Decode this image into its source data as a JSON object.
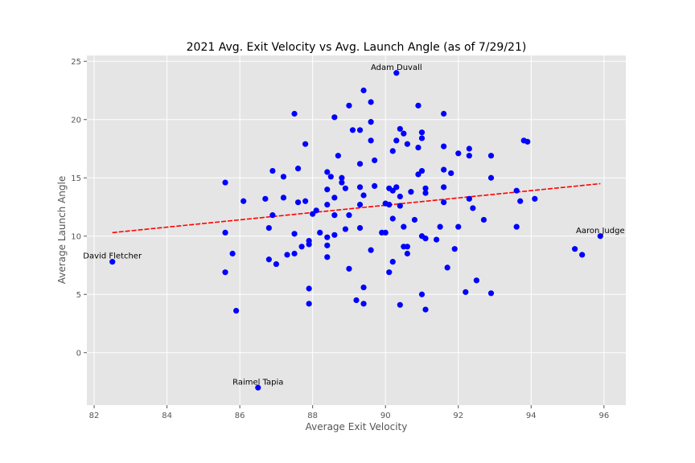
{
  "chart_data": {
    "type": "scatter",
    "title": "2021 Avg. Exit Velocity vs Avg. Launch Angle (as of 7/29/21)",
    "xlabel": "Average Exit Velocity",
    "ylabel": "Average Launch Angle",
    "xlim": [
      81.8,
      96.6
    ],
    "ylim": [
      -4.5,
      25.5
    ],
    "xticks": [
      82,
      84,
      86,
      88,
      90,
      92,
      94,
      96
    ],
    "yticks": [
      0,
      5,
      10,
      15,
      20,
      25
    ],
    "grid": true,
    "colors": {
      "background": "#e5e5e5",
      "points": "#0000ff",
      "trendline": "#ff0000"
    },
    "trendline": {
      "x": [
        82.5,
        95.9
      ],
      "y": [
        10.3,
        14.5
      ],
      "style": "dashed"
    },
    "annotations": [
      {
        "text": "Adam Duvall",
        "x": 90.3,
        "y": 24.0,
        "anchor": "middle"
      },
      {
        "text": "Aaron Judge",
        "x": 95.9,
        "y": 10.0,
        "anchor": "middle"
      },
      {
        "text": "David Fletcher",
        "x": 82.5,
        "y": 7.8,
        "anchor": "middle"
      },
      {
        "text": "Raimel Tapia",
        "x": 86.5,
        "y": -3.0,
        "anchor": "middle"
      }
    ],
    "points": [
      [
        82.5,
        7.8
      ],
      [
        85.6,
        14.6
      ],
      [
        85.6,
        10.3
      ],
      [
        85.6,
        6.9
      ],
      [
        85.8,
        8.5
      ],
      [
        85.9,
        3.6
      ],
      [
        86.1,
        13.0
      ],
      [
        86.5,
        -3.0
      ],
      [
        86.7,
        13.2
      ],
      [
        86.8,
        10.7
      ],
      [
        86.8,
        8.0
      ],
      [
        86.9,
        15.6
      ],
      [
        86.9,
        11.8
      ],
      [
        87.0,
        7.6
      ],
      [
        87.2,
        15.1
      ],
      [
        87.2,
        13.3
      ],
      [
        87.3,
        8.4
      ],
      [
        87.5,
        20.5
      ],
      [
        87.5,
        10.2
      ],
      [
        87.5,
        8.5
      ],
      [
        87.6,
        15.8
      ],
      [
        87.6,
        12.9
      ],
      [
        87.7,
        9.1
      ],
      [
        87.8,
        17.9
      ],
      [
        87.8,
        13.0
      ],
      [
        87.9,
        9.6
      ],
      [
        87.9,
        9.3
      ],
      [
        87.9,
        5.5
      ],
      [
        87.9,
        4.2
      ],
      [
        88.0,
        11.9
      ],
      [
        88.1,
        12.2
      ],
      [
        88.2,
        10.3
      ],
      [
        88.4,
        15.5
      ],
      [
        88.4,
        14.0
      ],
      [
        88.4,
        12.7
      ],
      [
        88.4,
        9.9
      ],
      [
        88.4,
        9.2
      ],
      [
        88.4,
        8.2
      ],
      [
        88.5,
        15.1
      ],
      [
        88.6,
        20.2
      ],
      [
        88.6,
        13.3
      ],
      [
        88.6,
        11.8
      ],
      [
        88.6,
        10.1
      ],
      [
        88.7,
        16.9
      ],
      [
        88.8,
        15.0
      ],
      [
        88.8,
        14.6
      ],
      [
        88.9,
        14.1
      ],
      [
        88.9,
        10.6
      ],
      [
        89.0,
        21.2
      ],
      [
        89.0,
        11.8
      ],
      [
        89.0,
        7.2
      ],
      [
        89.1,
        19.1
      ],
      [
        89.2,
        4.5
      ],
      [
        89.3,
        19.1
      ],
      [
        89.3,
        16.2
      ],
      [
        89.3,
        14.2
      ],
      [
        89.3,
        12.7
      ],
      [
        89.3,
        10.7
      ],
      [
        89.4,
        22.5
      ],
      [
        89.4,
        13.5
      ],
      [
        89.4,
        5.6
      ],
      [
        89.4,
        4.2
      ],
      [
        89.6,
        21.5
      ],
      [
        89.6,
        19.8
      ],
      [
        89.6,
        18.2
      ],
      [
        89.6,
        8.8
      ],
      [
        89.7,
        16.5
      ],
      [
        89.7,
        14.3
      ],
      [
        89.9,
        10.3
      ],
      [
        90.0,
        12.8
      ],
      [
        90.0,
        10.3
      ],
      [
        90.1,
        14.1
      ],
      [
        90.1,
        12.7
      ],
      [
        90.1,
        6.9
      ],
      [
        90.2,
        17.3
      ],
      [
        90.2,
        13.9
      ],
      [
        90.2,
        11.5
      ],
      [
        90.2,
        7.8
      ],
      [
        90.3,
        24.0
      ],
      [
        90.3,
        18.2
      ],
      [
        90.3,
        14.2
      ],
      [
        90.4,
        19.2
      ],
      [
        90.4,
        13.4
      ],
      [
        90.4,
        12.6
      ],
      [
        90.4,
        4.1
      ],
      [
        90.5,
        18.8
      ],
      [
        90.5,
        10.8
      ],
      [
        90.5,
        9.1
      ],
      [
        90.6,
        17.9
      ],
      [
        90.6,
        9.1
      ],
      [
        90.6,
        8.5
      ],
      [
        90.7,
        13.8
      ],
      [
        90.8,
        11.4
      ],
      [
        90.9,
        21.2
      ],
      [
        90.9,
        17.6
      ],
      [
        90.9,
        15.3
      ],
      [
        91.0,
        18.9
      ],
      [
        91.0,
        18.4
      ],
      [
        91.0,
        15.6
      ],
      [
        91.0,
        10.0
      ],
      [
        91.0,
        5.0
      ],
      [
        91.1,
        14.1
      ],
      [
        91.1,
        13.7
      ],
      [
        91.1,
        9.8
      ],
      [
        91.1,
        3.7
      ],
      [
        91.4,
        9.7
      ],
      [
        91.5,
        10.8
      ],
      [
        91.6,
        20.5
      ],
      [
        91.6,
        17.7
      ],
      [
        91.6,
        15.7
      ],
      [
        91.6,
        14.2
      ],
      [
        91.6,
        12.9
      ],
      [
        91.7,
        7.3
      ],
      [
        91.8,
        15.4
      ],
      [
        91.9,
        8.9
      ],
      [
        92.0,
        17.1
      ],
      [
        92.0,
        10.8
      ],
      [
        92.2,
        5.2
      ],
      [
        92.3,
        17.5
      ],
      [
        92.3,
        16.9
      ],
      [
        92.3,
        13.2
      ],
      [
        92.4,
        12.4
      ],
      [
        92.5,
        6.2
      ],
      [
        92.7,
        11.4
      ],
      [
        92.9,
        16.9
      ],
      [
        92.9,
        15.0
      ],
      [
        92.9,
        5.1
      ],
      [
        93.6,
        13.9
      ],
      [
        93.6,
        10.8
      ],
      [
        93.7,
        13.0
      ],
      [
        93.8,
        18.2
      ],
      [
        93.9,
        18.1
      ],
      [
        94.1,
        13.2
      ],
      [
        95.2,
        8.9
      ],
      [
        95.4,
        8.4
      ],
      [
        95.9,
        10.0
      ]
    ]
  }
}
